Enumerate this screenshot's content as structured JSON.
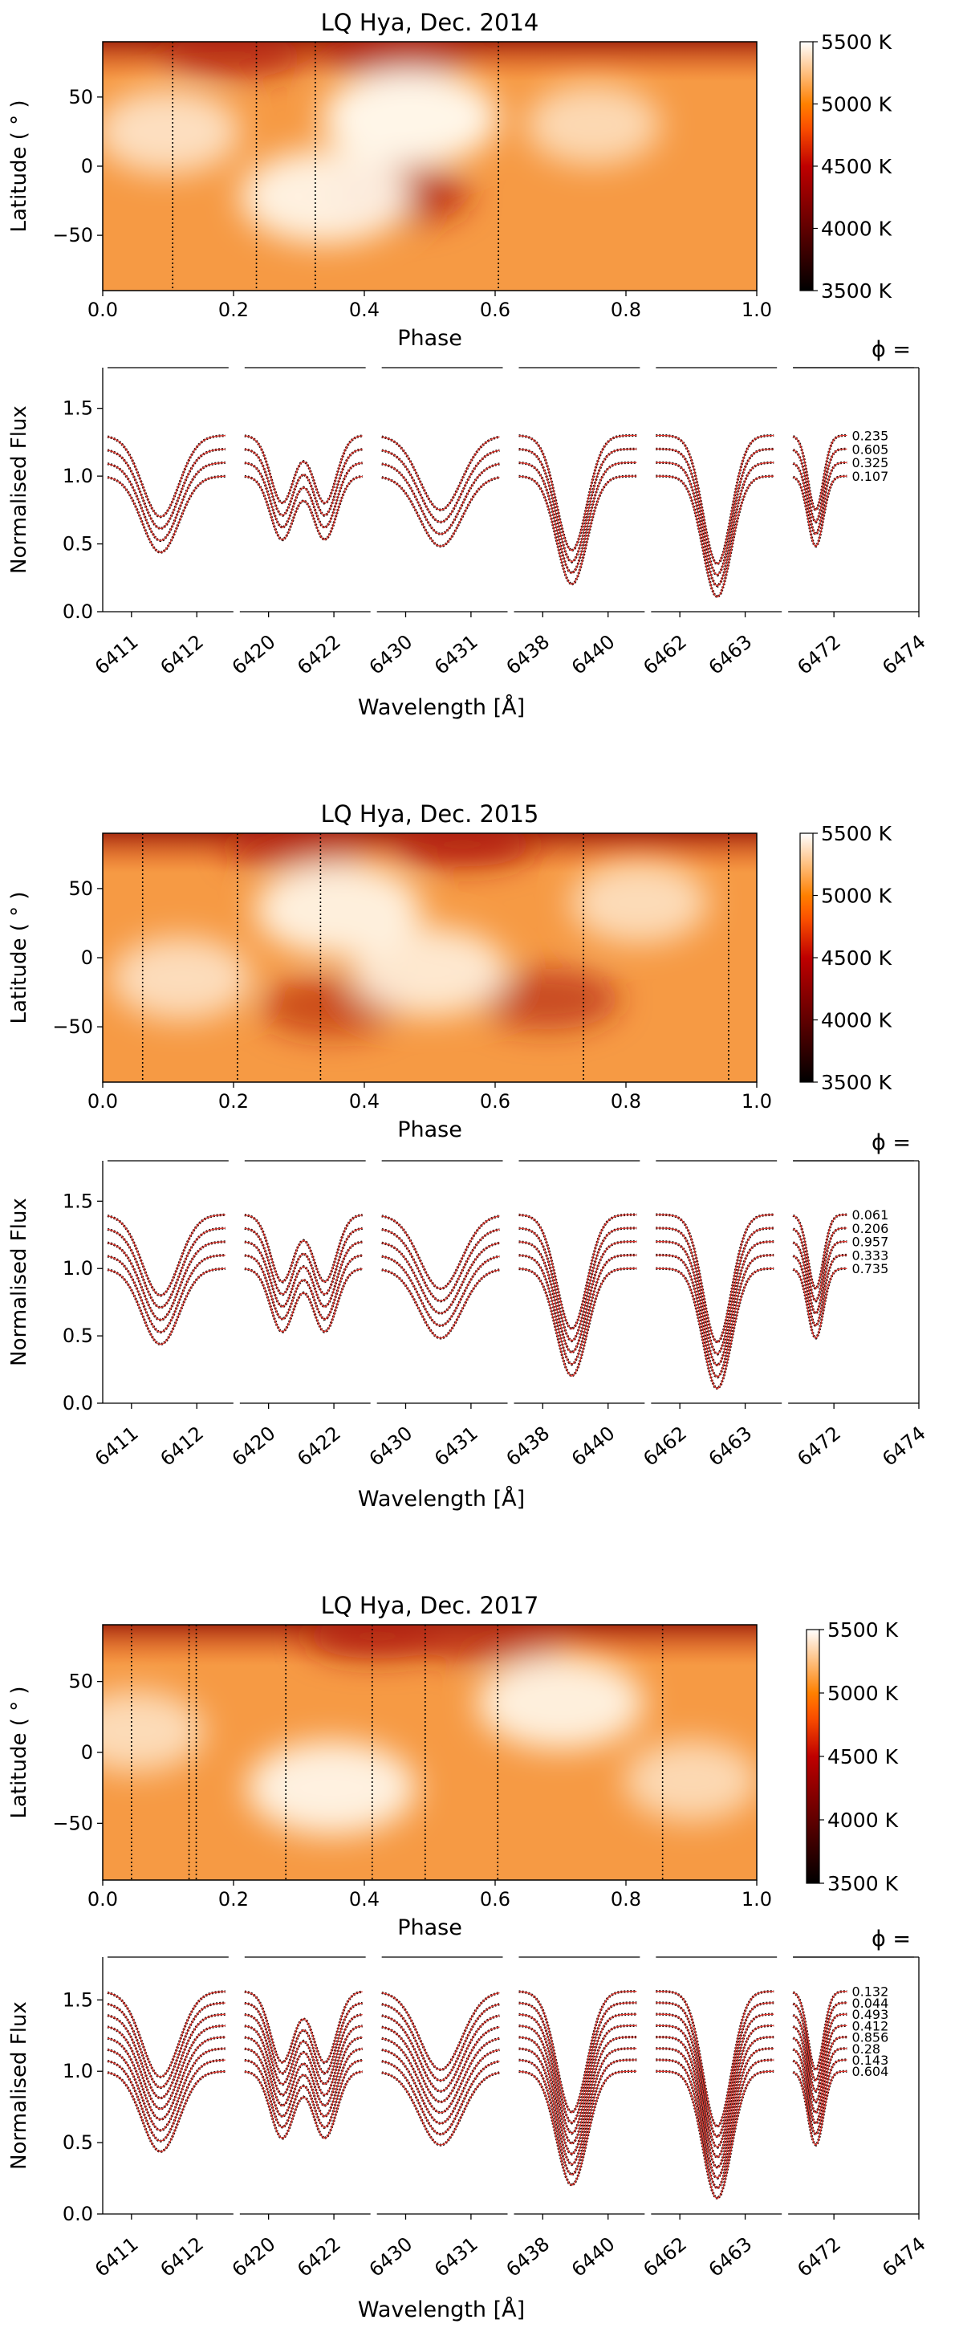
{
  "colors": {
    "profile_obs": "#1a0a08",
    "profile_fit": "#e0362e",
    "spot_dark": "#000000",
    "map_bright": "#fff6e8",
    "map_base": "#f69a44"
  },
  "shared": {
    "phase_label": "Phase",
    "latitude_label": "Latitude ( ° )",
    "flux_label": "Normalised Flux",
    "wavelength_label": "Wavelength [Å]",
    "phi_label": "ϕ =",
    "map_x_ticks": [
      "0.0",
      "0.2",
      "0.4",
      "0.6",
      "0.8",
      "1.0"
    ],
    "map_y_ticks": [
      "50",
      "0",
      "−50"
    ],
    "colorbar_ticks": [
      "5500 K",
      "5000 K",
      "4500 K",
      "4000 K",
      "3500 K"
    ],
    "flux_ticks": [
      "1.5",
      "1.0",
      "0.5",
      "0.0"
    ],
    "wavelength_ticks": [
      [
        "6411",
        "6412"
      ],
      [
        "6420",
        "6422"
      ],
      [
        "6430",
        "6431"
      ],
      [
        "6438",
        "6440"
      ],
      [
        "6462",
        "6463"
      ],
      [
        "6472",
        "6474"
      ]
    ]
  },
  "chart_data": [
    {
      "type": "heatmap",
      "title": "LQ Hya, Dec. 2014",
      "xlabel": "Phase",
      "ylabel": "Latitude ( ° )",
      "xlim": [
        0.0,
        1.0
      ],
      "ylim": [
        -90,
        90
      ],
      "colorbar": {
        "unit": "K",
        "range": [
          3500,
          5500
        ],
        "ticks": [
          5500,
          5000,
          4500,
          4000,
          3500
        ]
      },
      "observed_phases": [
        0.107,
        0.235,
        0.325,
        0.605
      ],
      "features": [
        {
          "kind": "cool",
          "phase": 0.45,
          "lat": 82,
          "strength": 0.9
        },
        {
          "kind": "cool",
          "phase": 0.2,
          "lat": 80,
          "strength": 0.6
        },
        {
          "kind": "cool",
          "phase": 0.45,
          "lat": -20,
          "strength": 0.75
        },
        {
          "kind": "warm",
          "phase": 0.47,
          "lat": 35,
          "strength": 1.0
        },
        {
          "kind": "warm",
          "phase": 0.34,
          "lat": -22,
          "strength": 0.9
        },
        {
          "kind": "warm",
          "phase": 0.1,
          "lat": 25,
          "strength": 0.5
        },
        {
          "kind": "warm",
          "phase": 0.75,
          "lat": 30,
          "strength": 0.35
        }
      ]
    },
    {
      "type": "line",
      "panel": "line_profiles_2014",
      "xlabel": "Wavelength [Å]",
      "ylabel": "Normalised Flux",
      "ylim": [
        0.0,
        1.8
      ],
      "phases": [
        "0.235",
        "0.605",
        "0.325",
        "0.107"
      ],
      "offset_step": 0.1
    },
    {
      "type": "heatmap",
      "title": "LQ Hya, Dec. 2015",
      "xlabel": "Phase",
      "ylabel": "Latitude ( ° )",
      "xlim": [
        0.0,
        1.0
      ],
      "ylim": [
        -90,
        90
      ],
      "colorbar": {
        "unit": "K",
        "range": [
          3500,
          5500
        ],
        "ticks": [
          5500,
          5000,
          4500,
          4000,
          3500
        ]
      },
      "observed_phases": [
        0.061,
        0.206,
        0.333,
        0.735,
        0.957
      ],
      "features": [
        {
          "kind": "cool",
          "phase": 0.55,
          "lat": 82,
          "strength": 0.85
        },
        {
          "kind": "cool",
          "phase": 0.3,
          "lat": 80,
          "strength": 0.5
        },
        {
          "kind": "cool",
          "phase": 0.68,
          "lat": -30,
          "strength": 0.45
        },
        {
          "kind": "cool",
          "phase": 0.35,
          "lat": -35,
          "strength": 0.35
        },
        {
          "kind": "warm",
          "phase": 0.36,
          "lat": 35,
          "strength": 0.85
        },
        {
          "kind": "warm",
          "phase": 0.5,
          "lat": -10,
          "strength": 0.7
        },
        {
          "kind": "warm",
          "phase": 0.12,
          "lat": -15,
          "strength": 0.45
        },
        {
          "kind": "warm",
          "phase": 0.82,
          "lat": 40,
          "strength": 0.4
        }
      ]
    },
    {
      "type": "line",
      "panel": "line_profiles_2015",
      "xlabel": "Wavelength [Å]",
      "ylabel": "Normalised Flux",
      "ylim": [
        0.0,
        1.8
      ],
      "phases": [
        "0.061",
        "0.206",
        "0.957",
        "0.333",
        "0.735"
      ],
      "offset_step": 0.1
    },
    {
      "type": "heatmap",
      "title": "LQ Hya, Dec. 2017",
      "xlabel": "Phase",
      "ylabel": "Latitude ( ° )",
      "xlim": [
        0.0,
        1.0
      ],
      "ylim": [
        -90,
        90
      ],
      "colorbar": {
        "unit": "K",
        "range": [
          3500,
          5500
        ],
        "ticks": [
          5500,
          5000,
          4500,
          4000,
          3500
        ]
      },
      "observed_phases": [
        0.044,
        0.132,
        0.143,
        0.28,
        0.412,
        0.493,
        0.604,
        0.856
      ],
      "features": [
        {
          "kind": "cool",
          "phase": 0.42,
          "lat": 82,
          "strength": 0.8
        },
        {
          "kind": "cool",
          "phase": 0.6,
          "lat": 78,
          "strength": 0.45
        },
        {
          "kind": "warm",
          "phase": 0.35,
          "lat": -25,
          "strength": 0.9
        },
        {
          "kind": "warm",
          "phase": 0.7,
          "lat": 35,
          "strength": 0.85
        },
        {
          "kind": "warm",
          "phase": 0.9,
          "lat": -20,
          "strength": 0.35
        },
        {
          "kind": "warm",
          "phase": 0.05,
          "lat": 15,
          "strength": 0.4
        }
      ]
    },
    {
      "type": "line",
      "panel": "line_profiles_2017",
      "xlabel": "Wavelength [Å]",
      "ylabel": "Normalised Flux",
      "ylim": [
        0.0,
        1.8
      ],
      "phases": [
        "0.132",
        "0.044",
        "0.493",
        "0.412",
        "0.856",
        "0.28",
        "0.143",
        "0.604"
      ],
      "offset_step": 0.08
    }
  ]
}
